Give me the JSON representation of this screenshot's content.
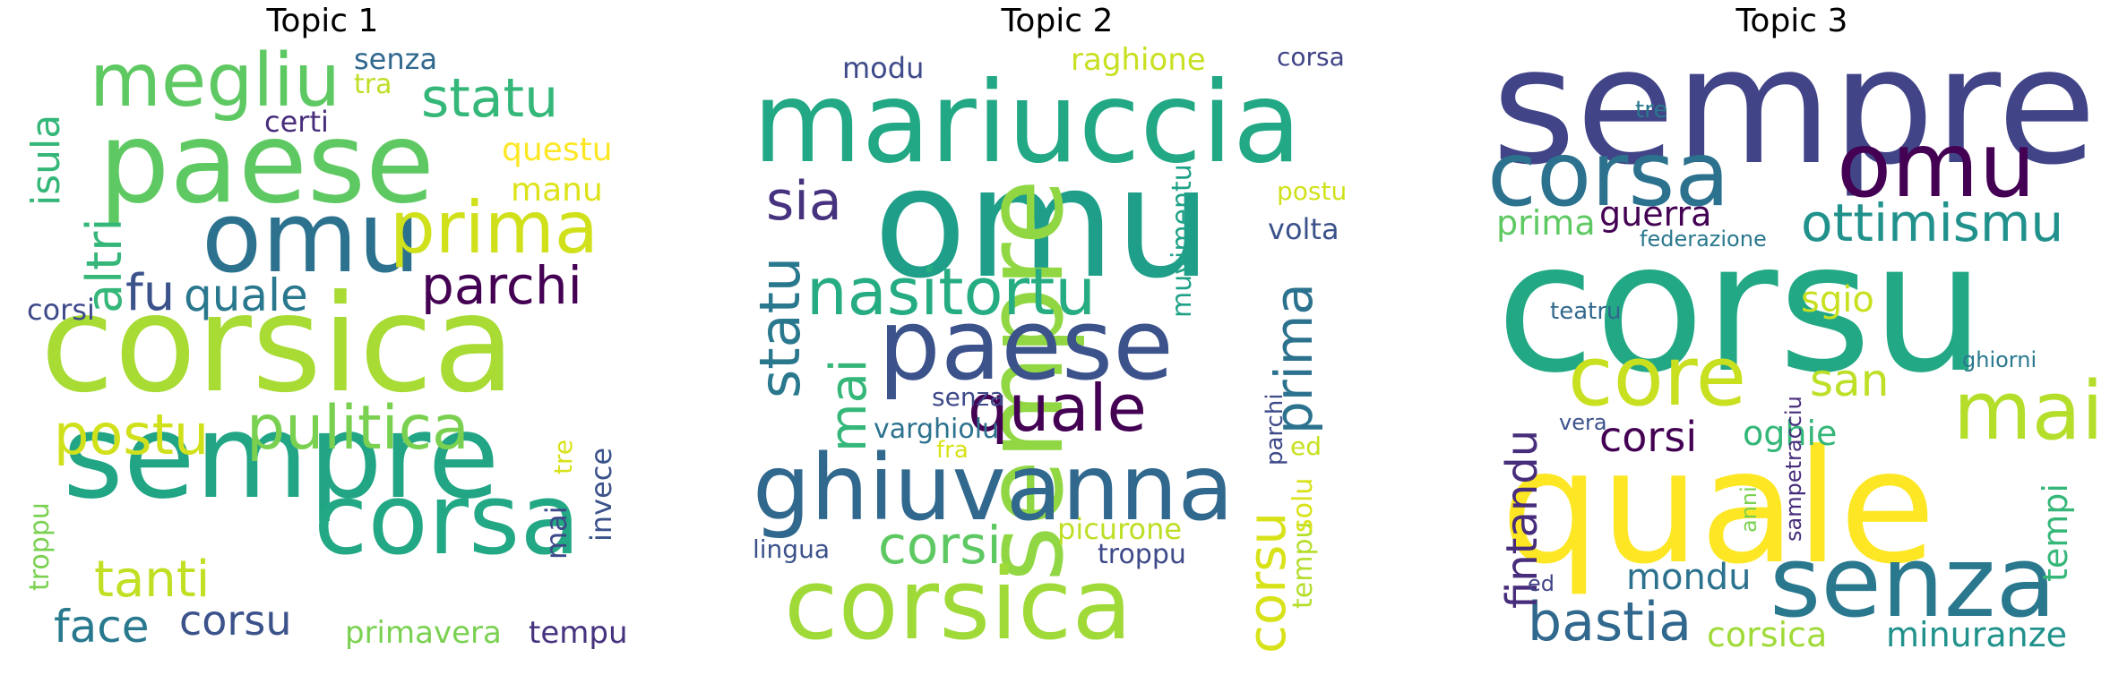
{
  "panels": [
    {
      "title": "Topic 1",
      "words": [
        {
          "text": "corsica",
          "color": "#a8db34"
        },
        {
          "text": "sempre",
          "color": "#21a585"
        },
        {
          "text": "paese",
          "color": "#5ec962"
        },
        {
          "text": "corsa",
          "color": "#22a884"
        },
        {
          "text": "omu",
          "color": "#2c728e"
        },
        {
          "text": "megliu",
          "color": "#5ec962"
        },
        {
          "text": "prima",
          "color": "#d0e11c"
        },
        {
          "text": "pulitica",
          "color": "#7ad151"
        },
        {
          "text": "statu",
          "color": "#35b779"
        },
        {
          "text": "parchi",
          "color": "#440154"
        },
        {
          "text": "postu",
          "color": "#d0e11c"
        },
        {
          "text": "tanti",
          "color": "#c2df23"
        },
        {
          "text": "altri",
          "color": "#35b779"
        },
        {
          "text": "quale",
          "color": "#2a788e"
        },
        {
          "text": "fu",
          "color": "#3b528b"
        },
        {
          "text": "face",
          "color": "#29798e"
        },
        {
          "text": "corsu",
          "color": "#3b528b"
        },
        {
          "text": "isula",
          "color": "#35b779"
        },
        {
          "text": "senza",
          "color": "#31688e"
        },
        {
          "text": "questu",
          "color": "#fde725"
        },
        {
          "text": "manu",
          "color": "#dde318"
        },
        {
          "text": "certi",
          "color": "#472d7b"
        },
        {
          "text": "tra",
          "color": "#bddf26"
        },
        {
          "text": "corsi",
          "color": "#3e4a89"
        },
        {
          "text": "primavera",
          "color": "#7ad151"
        },
        {
          "text": "tempu",
          "color": "#46327e"
        },
        {
          "text": "invece",
          "color": "#3b528b"
        },
        {
          "text": "mai",
          "color": "#3e4989"
        },
        {
          "text": "tre",
          "color": "#d8e219"
        },
        {
          "text": "troppu",
          "color": "#7ad151"
        }
      ]
    },
    {
      "title": "Topic 2",
      "words": [
        {
          "text": "omu",
          "color": "#1f9e89"
        },
        {
          "text": "mariuccia",
          "color": "#22a884"
        },
        {
          "text": "sempre",
          "color": "#90d743"
        },
        {
          "text": "paese",
          "color": "#3b528b"
        },
        {
          "text": "ghiuvanna",
          "color": "#31688e"
        },
        {
          "text": "corsica",
          "color": "#a0da39"
        },
        {
          "text": "nasitortu",
          "color": "#25ac82"
        },
        {
          "text": "quale",
          "color": "#440154"
        },
        {
          "text": "statu",
          "color": "#2a788e"
        },
        {
          "text": "sia",
          "color": "#46327e"
        },
        {
          "text": "mai",
          "color": "#35b779"
        },
        {
          "text": "corsi",
          "color": "#5ec962"
        },
        {
          "text": "prima",
          "color": "#2c728e"
        },
        {
          "text": "corsu",
          "color": "#d8e219"
        },
        {
          "text": "raghione",
          "color": "#c8e020"
        },
        {
          "text": "modu",
          "color": "#3e4a89"
        },
        {
          "text": "corsa",
          "color": "#414487"
        },
        {
          "text": "postu",
          "color": "#d0e11c"
        },
        {
          "text": "volta",
          "color": "#3b528b"
        },
        {
          "text": "muvimentu",
          "color": "#1fa187"
        },
        {
          "text": "senza",
          "color": "#3e4989"
        },
        {
          "text": "varghiolu",
          "color": "#2c728e"
        },
        {
          "text": "fra",
          "color": "#d8e219"
        },
        {
          "text": "picurone",
          "color": "#bddf26"
        },
        {
          "text": "troppu",
          "color": "#3e4989"
        },
        {
          "text": "lingua",
          "color": "#3b528b"
        },
        {
          "text": "parchi",
          "color": "#3e4a89"
        },
        {
          "text": "ed",
          "color": "#c8e020"
        },
        {
          "text": "tempu",
          "color": "#b5de2b"
        },
        {
          "text": "solu",
          "color": "#d8e219"
        }
      ]
    },
    {
      "title": "Topic 3",
      "words": [
        {
          "text": "sempre",
          "color": "#414487"
        },
        {
          "text": "corsu",
          "color": "#22a884"
        },
        {
          "text": "quale",
          "color": "#fde725"
        },
        {
          "text": "corsa",
          "color": "#2c728e"
        },
        {
          "text": "omu",
          "color": "#440154"
        },
        {
          "text": "senza",
          "color": "#2a788e"
        },
        {
          "text": "core",
          "color": "#c8e020"
        },
        {
          "text": "mai",
          "color": "#b5de2b"
        },
        {
          "text": "ottimismu",
          "color": "#21918c"
        },
        {
          "text": "bastia",
          "color": "#31688e"
        },
        {
          "text": "guerra",
          "color": "#440154"
        },
        {
          "text": "prima",
          "color": "#5ec962"
        },
        {
          "text": "federazione",
          "color": "#2a788e"
        },
        {
          "text": "san",
          "color": "#bddf26"
        },
        {
          "text": "sgio",
          "color": "#c8e020"
        },
        {
          "text": "teatru",
          "color": "#31688e"
        },
        {
          "text": "corsi",
          "color": "#440154"
        },
        {
          "text": "oghie",
          "color": "#35b779"
        },
        {
          "text": "fintandu",
          "color": "#472d7b"
        },
        {
          "text": "mondu",
          "color": "#2c728e"
        },
        {
          "text": "corsica",
          "color": "#a0da39"
        },
        {
          "text": "minuranze",
          "color": "#21918c"
        },
        {
          "text": "ghiorni",
          "color": "#2a788e"
        },
        {
          "text": "vera",
          "color": "#3b528b"
        },
        {
          "text": "tempi",
          "color": "#35b779"
        },
        {
          "text": "anni",
          "color": "#7ad151"
        },
        {
          "text": "sampetracciu",
          "color": "#472d7b"
        },
        {
          "text": "ed",
          "color": "#414487"
        },
        {
          "text": "tre",
          "color": "#2a788e"
        }
      ]
    }
  ]
}
